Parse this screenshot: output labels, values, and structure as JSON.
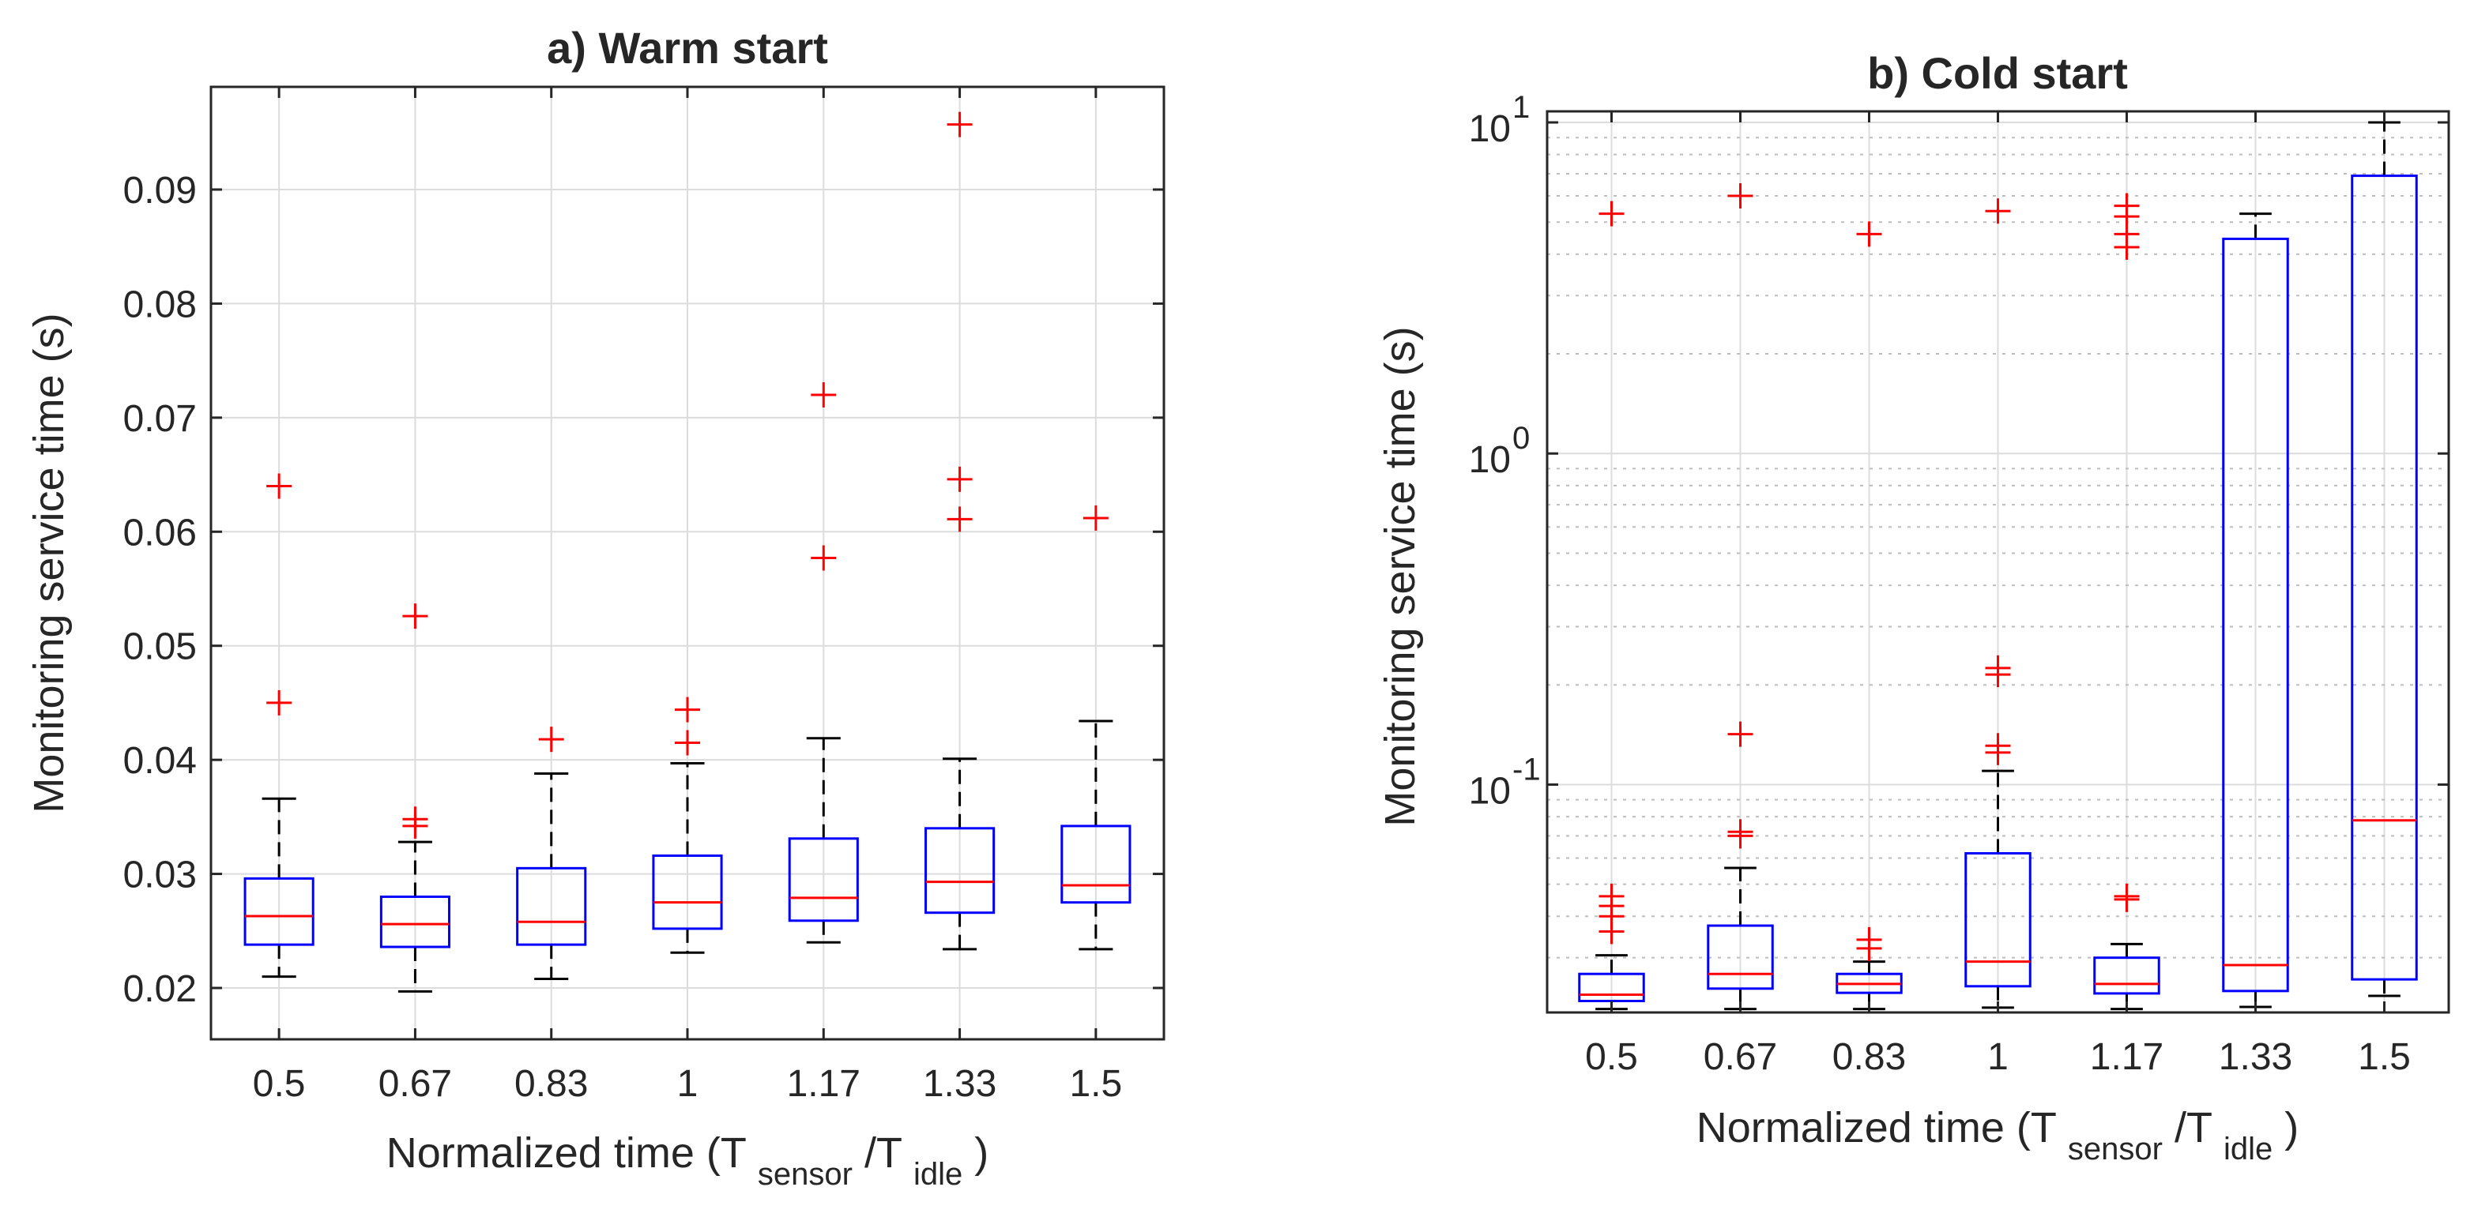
{
  "chart_data": [
    {
      "type": "box",
      "title": "a) Warm start",
      "xlabel": {
        "main": "Normalized time (T",
        "sub1": "sensor",
        "mid": "/T",
        "sub2": "idle",
        "end": ")"
      },
      "ylabel": "Monitoring service time (s)",
      "yscale": "linear",
      "ylim": [
        0.0155,
        0.099
      ],
      "yticks": [
        0.02,
        0.03,
        0.04,
        0.05,
        0.06,
        0.07,
        0.08,
        0.09
      ],
      "ytick_labels": [
        "0.02",
        "0.03",
        "0.04",
        "0.05",
        "0.06",
        "0.07",
        "0.08",
        "0.09"
      ],
      "categories": [
        "0.5",
        "0.67",
        "0.83",
        "1",
        "1.17",
        "1.33",
        "1.5"
      ],
      "boxes": [
        {
          "whisker_low": 0.021,
          "q1": 0.0238,
          "median": 0.0263,
          "q3": 0.0296,
          "whisker_high": 0.0366,
          "outliers": [
            0.045,
            0.064
          ]
        },
        {
          "whisker_low": 0.0197,
          "q1": 0.0236,
          "median": 0.0256,
          "q3": 0.028,
          "whisker_high": 0.0328,
          "outliers": [
            0.0342,
            0.0348,
            0.0526
          ]
        },
        {
          "whisker_low": 0.0208,
          "q1": 0.0238,
          "median": 0.0258,
          "q3": 0.0305,
          "whisker_high": 0.0388,
          "outliers": [
            0.0418
          ]
        },
        {
          "whisker_low": 0.0231,
          "q1": 0.0252,
          "median": 0.0275,
          "q3": 0.0316,
          "whisker_high": 0.0397,
          "outliers": [
            0.0415,
            0.0444
          ]
        },
        {
          "whisker_low": 0.024,
          "q1": 0.0259,
          "median": 0.0279,
          "q3": 0.0331,
          "whisker_high": 0.0419,
          "outliers": [
            0.0577,
            0.072
          ]
        },
        {
          "whisker_low": 0.0234,
          "q1": 0.0266,
          "median": 0.0293,
          "q3": 0.034,
          "whisker_high": 0.0401,
          "outliers": [
            0.0611,
            0.0646,
            0.0957
          ]
        },
        {
          "whisker_low": 0.0234,
          "q1": 0.0275,
          "median": 0.029,
          "q3": 0.0342,
          "whisker_high": 0.0434,
          "outliers": [
            0.0612
          ]
        }
      ]
    },
    {
      "type": "box",
      "title": "b) Cold start",
      "xlabel": {
        "main": "Normalized time (T",
        "sub1": "sensor",
        "mid": "/T",
        "sub2": "idle",
        "end": ")"
      },
      "ylabel": "Monitoring service time (s)",
      "yscale": "log",
      "ylim": [
        0.0205,
        10.8
      ],
      "yticks": [
        0.1,
        1,
        10
      ],
      "ytick_labels": [
        {
          "base": "10",
          "exp": "-1"
        },
        {
          "base": "10",
          "exp": "0"
        },
        {
          "base": "10",
          "exp": "1"
        }
      ],
      "categories": [
        "0.5",
        "0.67",
        "0.83",
        "1",
        "1.17",
        "1.33",
        "1.5"
      ],
      "boxes": [
        {
          "whisker_low": 0.021,
          "q1": 0.0222,
          "median": 0.0232,
          "q3": 0.0268,
          "whisker_high": 0.0305,
          "outliers": [
            0.036,
            0.04,
            0.043,
            0.046,
            5.3
          ]
        },
        {
          "whisker_low": 0.021,
          "q1": 0.0242,
          "median": 0.0268,
          "q3": 0.0375,
          "whisker_high": 0.056,
          "outliers": [
            0.07,
            0.072,
            0.142,
            6.0
          ]
        },
        {
          "whisker_low": 0.021,
          "q1": 0.0235,
          "median": 0.025,
          "q3": 0.0268,
          "whisker_high": 0.0292,
          "outliers": [
            0.032,
            0.034,
            4.6
          ]
        },
        {
          "whisker_low": 0.0212,
          "q1": 0.0246,
          "median": 0.0292,
          "q3": 0.062,
          "whisker_high": 0.11,
          "outliers": [
            0.125,
            0.131,
            0.215,
            0.225,
            5.4
          ]
        },
        {
          "whisker_low": 0.021,
          "q1": 0.0234,
          "median": 0.025,
          "q3": 0.03,
          "whisker_high": 0.033,
          "outliers": [
            0.045,
            0.046,
            4.2,
            4.6,
            5.2,
            5.6
          ]
        },
        {
          "whisker_low": 0.0213,
          "q1": 0.0238,
          "median": 0.0285,
          "q3": 4.45,
          "whisker_high": 5.3,
          "outliers": []
        },
        {
          "whisker_low": 0.023,
          "q1": 0.0258,
          "median": 0.078,
          "q3": 6.9,
          "whisker_high": 10.0,
          "outliers": []
        }
      ]
    }
  ]
}
